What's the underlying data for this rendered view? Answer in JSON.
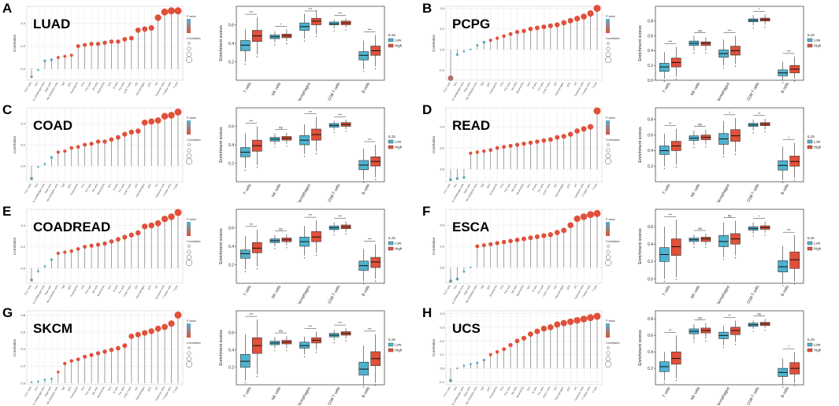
{
  "colors": {
    "low": "#4fb3cf",
    "high": "#e0503a",
    "grid": "#e8e8e8",
    "stem": "#7a7a7a",
    "axis": "#333333"
  },
  "lollipop_common": {
    "ylabel": "Correlation",
    "legend_pvalue_title": "P value",
    "legend_corr_title": "Correlation",
    "celltypes": [
      "Th17 cells",
      "Tcm",
      "NK CD56bright cells",
      "Mast cells",
      "NK CD56dim cells",
      "Tgd",
      "aDC",
      "Eosinophils",
      "TFH",
      "Th2 cells",
      "NK cells",
      "Neutrophils",
      "Tem",
      "B cells",
      "Th1 cells",
      "CD8 T cells",
      "iDC",
      "Macrophages",
      "pDC",
      "DC",
      "Cytotoxic cells",
      "T helper cells",
      "T cells"
    ]
  },
  "box_common": {
    "ylabel": "Enrichment scores",
    "categories": [
      "T cells",
      "NK cells",
      "Macrophages",
      "CD8 T cells",
      "B cells"
    ],
    "legend_title": "IL15",
    "legend_low": "Low",
    "legend_high": "High"
  },
  "chart_data": [
    {
      "panel": "A",
      "cancer": "LUAD",
      "type": "scatter",
      "correlations": [
        -0.07,
        -0.01,
        0.07,
        0.08,
        0.1,
        0.11,
        0.12,
        0.2,
        0.21,
        0.22,
        0.22,
        0.23,
        0.24,
        0.24,
        0.26,
        0.27,
        0.34,
        0.35,
        0.36,
        0.45,
        0.5,
        0.51,
        0.51
      ],
      "ylim": [
        -0.1,
        0.55
      ],
      "box": {
        "ylim": [
          0,
          0.8
        ],
        "ticks": [
          0.2,
          0.4,
          0.6
        ],
        "low": [
          [
            0.38,
            0.32,
            0.43,
            0.2,
            0.55
          ],
          [
            0.47,
            0.45,
            0.49,
            0.41,
            0.53
          ],
          [
            0.58,
            0.54,
            0.62,
            0.45,
            0.72
          ],
          [
            0.61,
            0.6,
            0.63,
            0.56,
            0.66
          ],
          [
            0.27,
            0.22,
            0.31,
            0.12,
            0.43
          ]
        ],
        "high": [
          [
            0.48,
            0.42,
            0.54,
            0.28,
            0.68
          ],
          [
            0.48,
            0.46,
            0.5,
            0.42,
            0.55
          ],
          [
            0.64,
            0.6,
            0.67,
            0.5,
            0.76
          ],
          [
            0.62,
            0.6,
            0.64,
            0.57,
            0.67
          ],
          [
            0.32,
            0.27,
            0.37,
            0.15,
            0.49
          ]
        ],
        "sig": [
          "***",
          "*",
          "***",
          "***",
          "***"
        ]
      }
    },
    {
      "panel": "B",
      "cancer": "PCPG",
      "type": "scatter",
      "correlations": [
        -0.28,
        -0.05,
        -0.02,
        0.0,
        0.04,
        0.07,
        0.09,
        0.11,
        0.13,
        0.15,
        0.17,
        0.18,
        0.2,
        0.21,
        0.22,
        0.23,
        0.24,
        0.26,
        0.28,
        0.3,
        0.32,
        0.35,
        0.4
      ],
      "ylim": [
        -0.3,
        0.42
      ],
      "box": {
        "ylim": [
          0,
          1.0
        ],
        "ticks": [
          0.0,
          0.2,
          0.4,
          0.6,
          0.8
        ],
        "low": [
          [
            0.18,
            0.12,
            0.23,
            0.02,
            0.38
          ],
          [
            0.5,
            0.47,
            0.53,
            0.4,
            0.6
          ],
          [
            0.36,
            0.31,
            0.41,
            0.2,
            0.55
          ],
          [
            0.81,
            0.79,
            0.83,
            0.74,
            0.88
          ],
          [
            0.1,
            0.06,
            0.14,
            0.0,
            0.25
          ]
        ],
        "high": [
          [
            0.24,
            0.18,
            0.3,
            0.05,
            0.45
          ],
          [
            0.5,
            0.47,
            0.52,
            0.4,
            0.58
          ],
          [
            0.4,
            0.34,
            0.46,
            0.22,
            0.6
          ],
          [
            0.82,
            0.8,
            0.84,
            0.75,
            0.89
          ],
          [
            0.15,
            0.1,
            0.2,
            0.02,
            0.32
          ]
        ],
        "sig": [
          "***",
          "ns",
          "***",
          "*",
          "***"
        ]
      }
    },
    {
      "panel": "C",
      "cancer": "COAD",
      "type": "scatter",
      "correlations": [
        -0.12,
        -0.01,
        0.02,
        0.08,
        0.13,
        0.14,
        0.17,
        0.18,
        0.2,
        0.21,
        0.23,
        0.23,
        0.25,
        0.27,
        0.3,
        0.32,
        0.33,
        0.41,
        0.42,
        0.43,
        0.47,
        0.48,
        0.51
      ],
      "ylim": [
        -0.15,
        0.55
      ],
      "box": {
        "ylim": [
          0,
          0.8
        ],
        "ticks": [
          0.2,
          0.4,
          0.6
        ],
        "low": [
          [
            0.32,
            0.27,
            0.37,
            0.15,
            0.52
          ],
          [
            0.46,
            0.44,
            0.48,
            0.4,
            0.52
          ],
          [
            0.45,
            0.4,
            0.5,
            0.3,
            0.62
          ],
          [
            0.61,
            0.59,
            0.63,
            0.56,
            0.66
          ],
          [
            0.18,
            0.13,
            0.23,
            0.02,
            0.36
          ]
        ],
        "high": [
          [
            0.39,
            0.33,
            0.45,
            0.18,
            0.6
          ],
          [
            0.47,
            0.45,
            0.49,
            0.41,
            0.53
          ],
          [
            0.51,
            0.45,
            0.57,
            0.33,
            0.7
          ],
          [
            0.62,
            0.6,
            0.64,
            0.57,
            0.67
          ],
          [
            0.22,
            0.17,
            0.27,
            0.05,
            0.4
          ]
        ],
        "sig": [
          "***",
          "ns",
          "***",
          "***",
          "***"
        ]
      }
    },
    {
      "panel": "D",
      "cancer": "READ",
      "type": "scatter",
      "correlations": [
        -0.1,
        -0.09,
        -0.08,
        0.15,
        0.16,
        0.17,
        0.18,
        0.2,
        0.21,
        0.22,
        0.23,
        0.24,
        0.25,
        0.26,
        0.27,
        0.28,
        0.3,
        0.31,
        0.33,
        0.36,
        0.38,
        0.4,
        0.55
      ],
      "ylim": [
        -0.12,
        0.58
      ],
      "box": {
        "ylim": [
          0,
          0.95
        ],
        "ticks": [
          0.2,
          0.4,
          0.6,
          0.8
        ],
        "low": [
          [
            0.4,
            0.35,
            0.46,
            0.2,
            0.62
          ],
          [
            0.56,
            0.53,
            0.59,
            0.47,
            0.66
          ],
          [
            0.55,
            0.48,
            0.62,
            0.35,
            0.78
          ],
          [
            0.73,
            0.71,
            0.75,
            0.66,
            0.8
          ],
          [
            0.21,
            0.15,
            0.27,
            0.02,
            0.45
          ]
        ],
        "high": [
          [
            0.46,
            0.4,
            0.52,
            0.22,
            0.68
          ],
          [
            0.57,
            0.54,
            0.6,
            0.48,
            0.67
          ],
          [
            0.59,
            0.52,
            0.67,
            0.38,
            0.82
          ],
          [
            0.74,
            0.72,
            0.76,
            0.67,
            0.81
          ],
          [
            0.26,
            0.2,
            0.33,
            0.05,
            0.5
          ]
        ],
        "sig": [
          "**",
          "ns",
          "*",
          "**",
          "*"
        ]
      }
    },
    {
      "panel": "E",
      "cancer": "COADREAD",
      "type": "scatter",
      "correlations": [
        -0.11,
        -0.03,
        0.02,
        0.08,
        0.14,
        0.15,
        0.16,
        0.18,
        0.2,
        0.21,
        0.22,
        0.23,
        0.25,
        0.27,
        0.29,
        0.31,
        0.33,
        0.39,
        0.4,
        0.42,
        0.46,
        0.48,
        0.52
      ],
      "ylim": [
        -0.14,
        0.55
      ],
      "box": {
        "ylim": [
          0,
          0.8
        ],
        "ticks": [
          0.2,
          0.4,
          0.6
        ],
        "low": [
          [
            0.32,
            0.27,
            0.36,
            0.15,
            0.51
          ],
          [
            0.46,
            0.44,
            0.48,
            0.4,
            0.52
          ],
          [
            0.45,
            0.4,
            0.5,
            0.3,
            0.62
          ],
          [
            0.6,
            0.58,
            0.62,
            0.55,
            0.66
          ],
          [
            0.19,
            0.14,
            0.24,
            0.02,
            0.37
          ]
        ],
        "high": [
          [
            0.38,
            0.33,
            0.44,
            0.18,
            0.58
          ],
          [
            0.47,
            0.45,
            0.49,
            0.41,
            0.53
          ],
          [
            0.5,
            0.45,
            0.56,
            0.33,
            0.68
          ],
          [
            0.61,
            0.59,
            0.63,
            0.56,
            0.67
          ],
          [
            0.23,
            0.17,
            0.28,
            0.05,
            0.42
          ]
        ],
        "sig": [
          "***",
          "ns",
          "***",
          "***",
          "***"
        ]
      }
    },
    {
      "panel": "F",
      "cancer": "ESCA",
      "type": "scatter",
      "correlations": [
        -0.13,
        -0.11,
        -0.04,
        0.0,
        0.2,
        0.21,
        0.22,
        0.23,
        0.24,
        0.25,
        0.26,
        0.27,
        0.28,
        0.29,
        0.3,
        0.31,
        0.33,
        0.35,
        0.4,
        0.46,
        0.48,
        0.5,
        0.51
      ],
      "ylim": [
        -0.15,
        0.55
      ],
      "box": {
        "ylim": [
          -0.05,
          0.8
        ],
        "ticks": [
          0.0,
          0.2,
          0.4,
          0.6
        ],
        "low": [
          [
            0.28,
            0.2,
            0.36,
            0.0,
            0.6
          ],
          [
            0.45,
            0.43,
            0.47,
            0.39,
            0.51
          ],
          [
            0.43,
            0.37,
            0.5,
            0.25,
            0.65
          ],
          [
            0.58,
            0.56,
            0.6,
            0.52,
            0.65
          ],
          [
            0.14,
            0.08,
            0.21,
            -0.05,
            0.38
          ]
        ],
        "high": [
          [
            0.37,
            0.27,
            0.46,
            0.02,
            0.68
          ],
          [
            0.46,
            0.43,
            0.48,
            0.39,
            0.52
          ],
          [
            0.46,
            0.4,
            0.52,
            0.27,
            0.67
          ],
          [
            0.59,
            0.57,
            0.61,
            0.53,
            0.66
          ],
          [
            0.22,
            0.12,
            0.31,
            -0.03,
            0.5
          ]
        ],
        "sig": [
          "***",
          "ns",
          "ns",
          "*",
          "***"
        ]
      }
    },
    {
      "panel": "G",
      "cancer": "SKCM",
      "type": "scatter",
      "correlations": [
        0.01,
        0.02,
        0.04,
        0.05,
        0.13,
        0.23,
        0.26,
        0.28,
        0.31,
        0.33,
        0.35,
        0.37,
        0.39,
        0.41,
        0.44,
        0.55,
        0.57,
        0.59,
        0.61,
        0.64,
        0.66,
        0.7,
        0.8
      ],
      "ylim": [
        -0.02,
        0.85
      ],
      "box": {
        "ylim": [
          0,
          0.85
        ],
        "ticks": [
          0.2,
          0.4,
          0.6
        ],
        "low": [
          [
            0.27,
            0.2,
            0.35,
            0.05,
            0.58
          ],
          [
            0.48,
            0.46,
            0.5,
            0.42,
            0.55
          ],
          [
            0.45,
            0.42,
            0.49,
            0.35,
            0.55
          ],
          [
            0.57,
            0.55,
            0.59,
            0.51,
            0.63
          ],
          [
            0.18,
            0.11,
            0.26,
            0.0,
            0.45
          ]
        ],
        "high": [
          [
            0.45,
            0.36,
            0.54,
            0.12,
            0.75
          ],
          [
            0.49,
            0.47,
            0.51,
            0.42,
            0.56
          ],
          [
            0.51,
            0.48,
            0.54,
            0.4,
            0.61
          ],
          [
            0.59,
            0.57,
            0.61,
            0.53,
            0.65
          ],
          [
            0.3,
            0.22,
            0.38,
            0.02,
            0.58
          ]
        ],
        "sig": [
          "***",
          "ns",
          "***",
          "***",
          "***"
        ]
      }
    },
    {
      "panel": "H",
      "cancer": "UCS",
      "type": "scatter",
      "correlations": [
        -0.09,
        0.0,
        0.02,
        0.03,
        0.04,
        0.06,
        0.1,
        0.12,
        0.14,
        0.17,
        0.2,
        0.22,
        0.25,
        0.27,
        0.29,
        0.3,
        0.32,
        0.33,
        0.34,
        0.35,
        0.36,
        0.37,
        0.38
      ],
      "ylim": [
        -0.12,
        0.42
      ],
      "box": {
        "ylim": [
          0,
          0.9
        ],
        "ticks": [
          0.2,
          0.4,
          0.6,
          0.8
        ],
        "low": [
          [
            0.22,
            0.16,
            0.28,
            0.05,
            0.4
          ],
          [
            0.65,
            0.62,
            0.68,
            0.55,
            0.74
          ],
          [
            0.6,
            0.56,
            0.64,
            0.48,
            0.72
          ],
          [
            0.73,
            0.71,
            0.75,
            0.68,
            0.78
          ],
          [
            0.15,
            0.1,
            0.2,
            0.0,
            0.32
          ]
        ],
        "high": [
          [
            0.32,
            0.25,
            0.4,
            0.08,
            0.6
          ],
          [
            0.66,
            0.63,
            0.69,
            0.56,
            0.75
          ],
          [
            0.66,
            0.61,
            0.7,
            0.52,
            0.78
          ],
          [
            0.74,
            0.72,
            0.76,
            0.69,
            0.8
          ],
          [
            0.2,
            0.13,
            0.27,
            0.02,
            0.4
          ]
        ],
        "sig": [
          "**",
          "ns",
          "**",
          "ns",
          "*"
        ]
      }
    }
  ]
}
